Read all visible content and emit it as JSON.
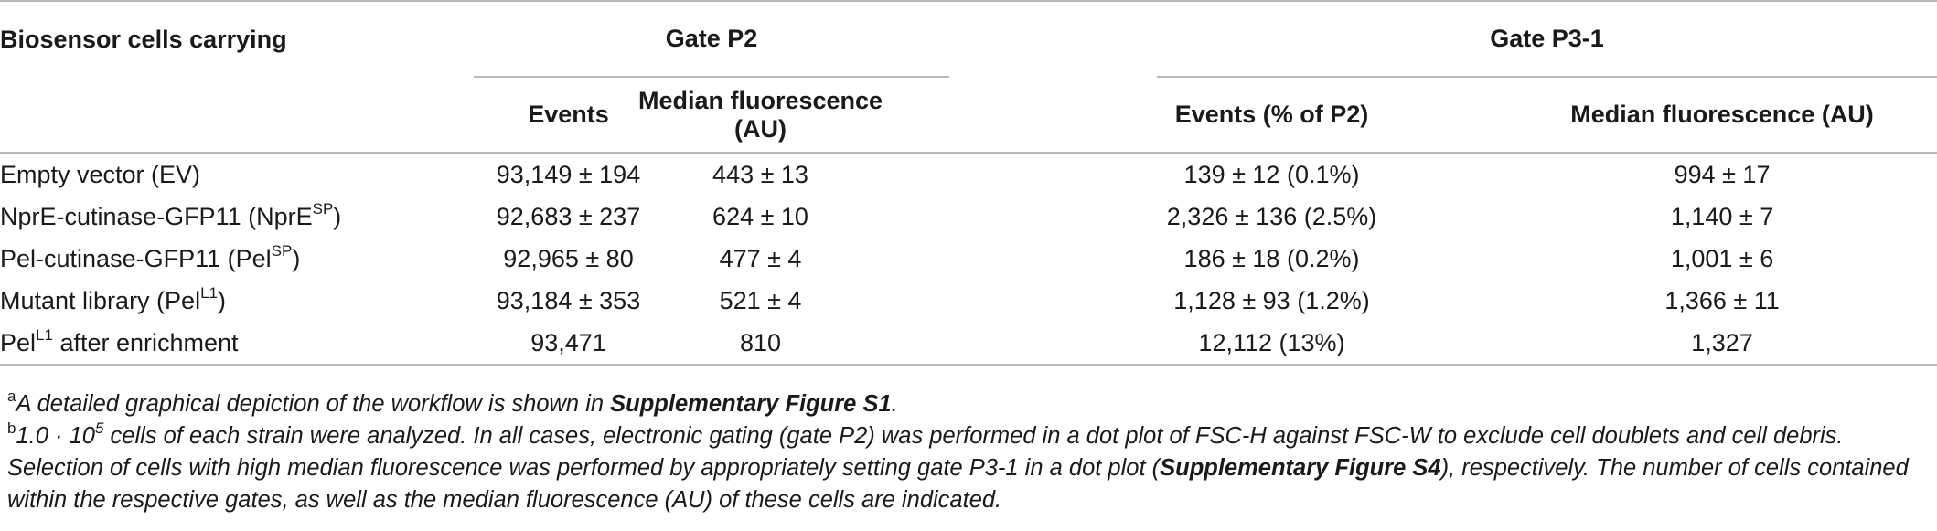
{
  "table": {
    "header": {
      "first_col": "Biosensor cells carrying",
      "group_p2": "Gate P2",
      "group_p3": "Gate P3-1",
      "sub_events": "Events",
      "sub_median_p2": "Median fluorescence (AU)",
      "sub_events_pct": "Events (% of P2)",
      "sub_median_p3": "Median fluorescence (AU)"
    },
    "rows": [
      {
        "label": "Empty vector (EV)",
        "label_sup": "",
        "label_suffix": "",
        "p2_events": "93,149 ± 194",
        "p2_median": "443 ± 13",
        "p3_events": "139 ± 12 (0.1%)",
        "p3_median": "994 ± 17"
      },
      {
        "label": "NprE-cutinase-GFP11 (NprE",
        "label_sup": "SP",
        "label_suffix": ")",
        "p2_events": "92,683 ± 237",
        "p2_median": "624 ± 10",
        "p3_events": "2,326 ± 136 (2.5%)",
        "p3_median": "1,140 ± 7"
      },
      {
        "label": "Pel-cutinase-GFP11 (Pel",
        "label_sup": "SP",
        "label_suffix": ")",
        "p2_events": "92,965 ± 80",
        "p2_median": "477 ± 4",
        "p3_events": "186 ± 18 (0.2%)",
        "p3_median": "1,001 ± 6"
      },
      {
        "label": "Mutant library (Pel",
        "label_sup": "L1",
        "label_suffix": ")",
        "p2_events": "93,184 ± 353",
        "p2_median": "521 ± 4",
        "p3_events": "1,128 ± 93 (1.2%)",
        "p3_median": "1,366 ± 11"
      },
      {
        "label": "Pel",
        "label_sup": "L1",
        "label_suffix": " after enrichment",
        "p2_events": "93,471",
        "p2_median": "810",
        "p3_events": "12,112 (13%)",
        "p3_median": "1,327"
      }
    ]
  },
  "notes": {
    "a": {
      "marker": "a",
      "text": "A detailed graphical depiction of the workflow is shown in ",
      "bold": "Supplementary Figure S1",
      "end": "."
    },
    "b": {
      "marker": "b",
      "text_1": "1.0 · 10",
      "exp": "5",
      "text_2": " cells of each strain were analyzed. In all cases, electronic gating (gate P2) was performed in a dot plot of FSC-H against FSC-W to exclude cell doublets and cell debris. Selection of cells with high median fluorescence was performed by appropriately setting gate P3-1 in a dot plot (",
      "bold": "Supplementary Figure S4",
      "text_3": "), respectively. The number of cells contained within the respective gates, as well as the median fluorescence (AU) of these cells are indicated."
    }
  }
}
